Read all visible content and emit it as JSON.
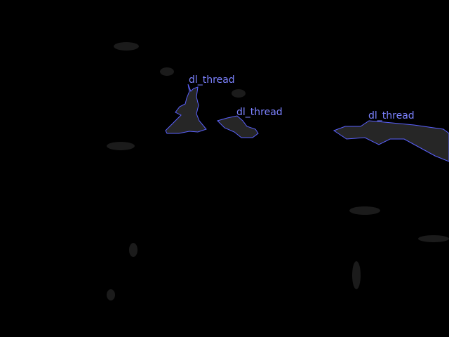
{
  "image": {
    "background_color": "#000000",
    "overlay_color": "#5a61ff",
    "region_fill_color": "#2a2a2a"
  },
  "annotations": [
    {
      "label": "dl_thread"
    },
    {
      "label": "dl_thread"
    },
    {
      "label": "dl_thread"
    }
  ]
}
